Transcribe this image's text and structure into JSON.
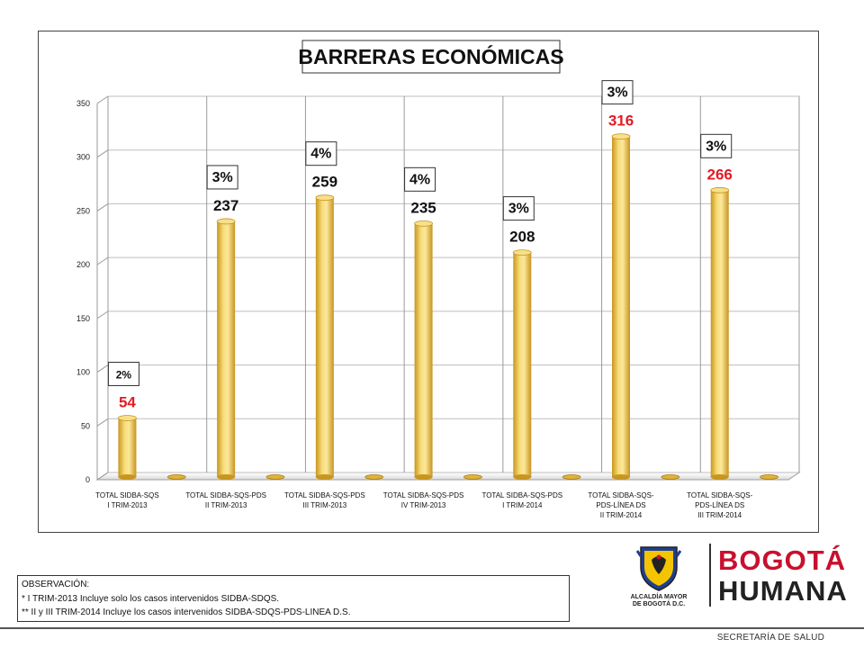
{
  "chart_data": {
    "type": "bar",
    "title": "BARRERAS ECONÓMICAS",
    "categories": [
      "TOTAL SIDBA-SQS I TRIM-2013",
      "TOTAL SIDBA-SQS-PDS II TRIM-2013",
      "TOTAL SIDBA-SQS-PDS III TRIM-2013",
      "TOTAL SIDBA-SQS-PDS IV TRIM-2013",
      "TOTAL SIDBA-SQS-PDS I TRIM-2014",
      "TOTAL SIDBA-SQS-PDS-LÍNEA DS II TRIM-2014",
      "TOTAL SIDBA-SQS-PDS-LÍNEA DS III TRIM-2014"
    ],
    "category_lines": [
      [
        "TOTAL SIDBA-SQS",
        "I TRIM-2013"
      ],
      [
        "TOTAL SIDBA-SQS-PDS",
        "II TRIM-2013"
      ],
      [
        "TOTAL SIDBA-SQS-PDS",
        "III TRIM-2013"
      ],
      [
        "TOTAL SIDBA-SQS-PDS",
        "IV TRIM-2013"
      ],
      [
        "TOTAL SIDBA-SQS-PDS",
        "I TRIM-2014"
      ],
      [
        "TOTAL SIDBA-SQS-",
        "PDS-LÍNEA DS",
        "II TRIM-2014"
      ],
      [
        "TOTAL SIDBA-SQS-",
        "PDS-LÍNEA DS",
        "III TRIM-2014"
      ]
    ],
    "values": [
      54,
      237,
      259,
      235,
      208,
      316,
      266
    ],
    "value_labels": [
      "54",
      "237",
      "259",
      "235",
      "208",
      "316",
      "266"
    ],
    "value_label_colors": [
      "#e31b23",
      "#111111",
      "#111111",
      "#111111",
      "#111111",
      "#e31b23",
      "#e31b23"
    ],
    "percent_labels": [
      "2%",
      "3%",
      "4%",
      "4%",
      "3%",
      "3%",
      "3%"
    ],
    "ylim": [
      0,
      350
    ],
    "yticks": [
      0,
      50,
      100,
      150,
      200,
      250,
      300,
      350
    ],
    "ytick_labels": [
      "0",
      "50",
      "100",
      "150",
      "200",
      "250",
      "300",
      "350"
    ],
    "grid": true,
    "legend": "none",
    "bar_color": "#f2c94c"
  },
  "observation": {
    "title": "OBSERVACIÓN:",
    "line1": "* I TRIM-2013 Incluye solo los casos intervenidos SIDBA-SDQS.",
    "line2": "** II y III TRIM-2014 Incluye los casos intervenidos SIDBA-SDQS-PDS-LINEA D.S."
  },
  "logo": {
    "alcaldia_line1": "ALCALDÍA MAYOR",
    "alcaldia_line2": "DE BOGOTÁ D.C.",
    "brand_top": "BOGOTÁ",
    "brand_bottom": "HUMANA"
  },
  "footer": {
    "department": "SECRETARÍA DE SALUD"
  }
}
